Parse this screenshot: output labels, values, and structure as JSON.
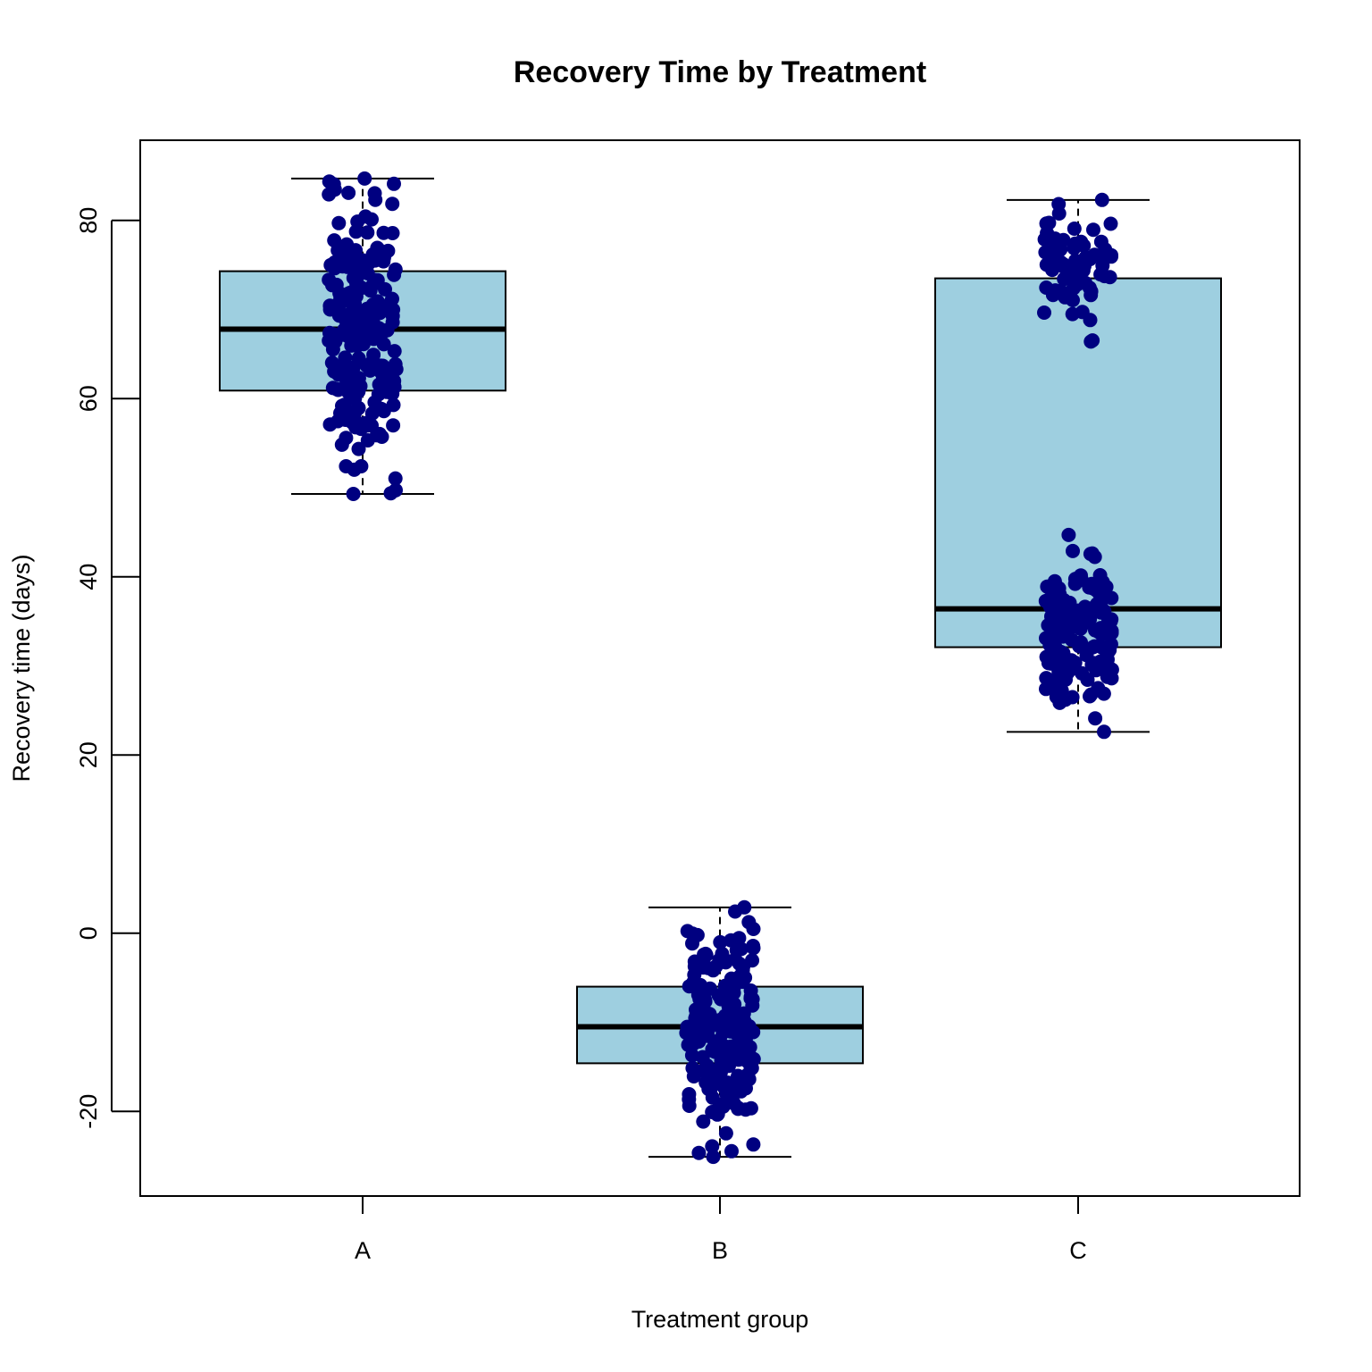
{
  "chart_data": {
    "type": "box",
    "title": "Recovery Time by Treatment",
    "xlabel": "Treatment group",
    "ylabel": "Recovery time (days)",
    "categories": [
      "A",
      "B",
      "C"
    ],
    "ylim": [
      -29.5,
      89
    ],
    "yticks": [
      -20,
      0,
      20,
      40,
      60,
      80
    ],
    "ytick_labels": [
      "-20",
      "0",
      "20",
      "40",
      "60",
      "80"
    ],
    "grid": false,
    "legend": "none",
    "points_shown": true,
    "colors": {
      "box_fill": "#9ecfe0",
      "points": "#000080",
      "lines": "#000000"
    },
    "boxes": [
      {
        "category": "A",
        "whisker_low": 49.3,
        "q1": 60.9,
        "median": 67.8,
        "q3": 74.3,
        "whisker_high": 84.7
      },
      {
        "category": "B",
        "whisker_low": -25.1,
        "q1": -14.6,
        "median": -10.5,
        "q3": -6.0,
        "whisker_high": 2.9
      },
      {
        "category": "C",
        "whisker_low": 22.6,
        "q1": 32.1,
        "median": 36.4,
        "q3": 73.5,
        "whisker_high": 82.3
      }
    ],
    "point_groups": [
      {
        "category": "A",
        "n": 220,
        "clusters": [
          {
            "weight": 1.0,
            "mean": 67.5,
            "sd": 8.5,
            "min": 49.3,
            "max": 84.7
          }
        ]
      },
      {
        "category": "B",
        "n": 220,
        "clusters": [
          {
            "weight": 1.0,
            "mean": -10.5,
            "sd": 6.2,
            "min": -25.1,
            "max": 2.9
          }
        ]
      },
      {
        "category": "C",
        "n": 220,
        "clusters": [
          {
            "weight": 0.7,
            "mean": 34.0,
            "sd": 4.6,
            "min": 22.6,
            "max": 44.7
          },
          {
            "weight": 0.3,
            "mean": 76.0,
            "sd": 3.5,
            "min": 66.4,
            "max": 82.3
          }
        ]
      }
    ]
  }
}
